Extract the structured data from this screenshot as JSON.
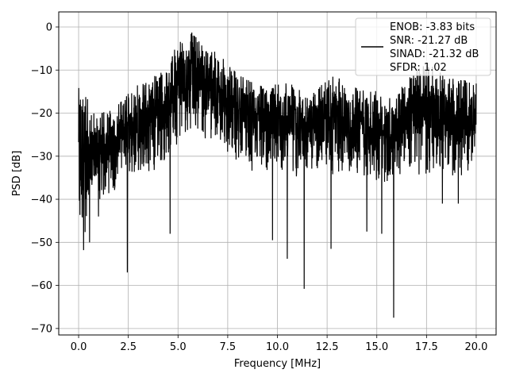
{
  "chart_data": {
    "type": "line",
    "title": "",
    "xlabel": "Frequency [MHz]",
    "ylabel": "PSD [dB]",
    "xlim": [
      -1.0,
      21.0
    ],
    "ylim": [
      -71.5,
      3.5
    ],
    "xticks": [
      0.0,
      2.5,
      5.0,
      7.5,
      10.0,
      12.5,
      15.0,
      17.5,
      20.0
    ],
    "xtick_labels": [
      "0.0",
      "2.5",
      "5.0",
      "7.5",
      "10.0",
      "12.5",
      "15.0",
      "17.5",
      "20.0"
    ],
    "yticks": [
      0,
      -10,
      -20,
      -30,
      -40,
      -50,
      -60,
      -70
    ],
    "ytick_labels": [
      "0",
      "−10",
      "−20",
      "−30",
      "−40",
      "−50",
      "−60",
      "−70"
    ],
    "grid": true,
    "legend_position": "top-right",
    "legend_entries": [
      "ENOB: -3.83 bits",
      "SNR: -21.27 dB",
      "SINAD: -21.32 dB",
      "SFDR: 1.02"
    ],
    "series": [
      {
        "color": "#000000",
        "envelope": {
          "x": [
            0.0,
            0.5,
            1.0,
            1.5,
            2.0,
            2.5,
            3.0,
            3.5,
            4.0,
            4.5,
            5.0,
            5.5,
            6.0,
            6.5,
            7.0,
            7.5,
            8.0,
            8.5,
            9.0,
            9.5,
            10.0,
            10.5,
            11.0,
            11.5,
            12.0,
            12.5,
            13.0,
            13.5,
            14.0,
            14.5,
            15.0,
            15.5,
            16.0,
            16.5,
            17.0,
            17.5,
            18.0,
            18.5,
            19.0,
            19.5,
            20.0
          ],
          "upper": [
            -14,
            -17,
            -20,
            -19,
            -18,
            -15,
            -13,
            -12,
            -10,
            -9,
            -3,
            -0.5,
            -2,
            -5,
            -6,
            -8,
            -10,
            -12,
            -13,
            -14,
            -13,
            -12,
            -14,
            -16,
            -14,
            -12,
            -11,
            -13,
            -14,
            -14,
            -15,
            -16,
            -16,
            -12,
            -9,
            -8,
            -10,
            -11,
            -12,
            -12,
            -13
          ],
          "lower": [
            -50,
            -48,
            -42,
            -40,
            -37,
            -35,
            -35,
            -34,
            -33,
            -30,
            -27,
            -24,
            -25,
            -27,
            -26,
            -29,
            -32,
            -34,
            -33,
            -34,
            -34,
            -33,
            -35,
            -34,
            -34,
            -35,
            -36,
            -34,
            -35,
            -35,
            -36,
            -36,
            -35,
            -34,
            -34,
            -36,
            -34,
            -35,
            -35,
            -34,
            -32
          ]
        },
        "dips": [
          {
            "x": 0.25,
            "y": -51.8
          },
          {
            "x": 0.55,
            "y": -50.0
          },
          {
            "x": 1.0,
            "y": -44.0
          },
          {
            "x": 2.45,
            "y": -57.0
          },
          {
            "x": 4.6,
            "y": -48.0
          },
          {
            "x": 9.75,
            "y": -49.5
          },
          {
            "x": 10.5,
            "y": -53.8
          },
          {
            "x": 11.35,
            "y": -60.8
          },
          {
            "x": 12.7,
            "y": -51.5
          },
          {
            "x": 14.5,
            "y": -47.5
          },
          {
            "x": 15.25,
            "y": -48.0
          },
          {
            "x": 15.85,
            "y": -67.5
          },
          {
            "x": 18.3,
            "y": -41.0
          },
          {
            "x": 19.1,
            "y": -41.0
          }
        ]
      }
    ]
  }
}
